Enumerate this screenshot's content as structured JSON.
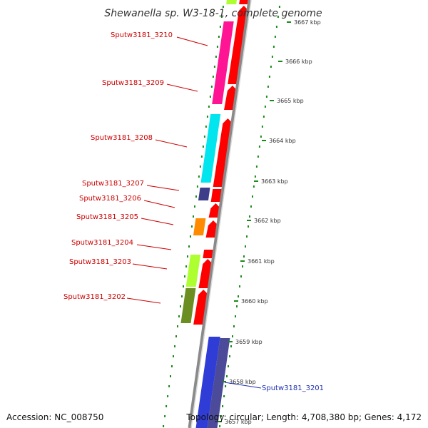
{
  "title": "Shewanella sp. W3-18-1, complete genome",
  "colors": {
    "backbone": "#8a8a8a",
    "ticks": "#1a8a1a",
    "forward_gene": "#ff0000",
    "reverse_gene": "#2f3cd6",
    "label_forward": "#cc0000",
    "label_reverse": "#1f2fb0"
  },
  "ruler": [
    {
      "label": "3667 kbp"
    },
    {
      "label": "3666 kbp"
    },
    {
      "label": "3665 kbp"
    },
    {
      "label": "3664 kbp"
    },
    {
      "label": "3663 kbp"
    },
    {
      "label": "3662 kbp"
    },
    {
      "label": "3661 kbp"
    },
    {
      "label": "3660 kbp"
    },
    {
      "label": "3659 kbp"
    },
    {
      "label": "3658 kbp"
    },
    {
      "label": "3657 kbp"
    }
  ],
  "genes": [
    {
      "label": "Sputw3181_3210",
      "strand": "forward",
      "cog_color": "#ff1493"
    },
    {
      "label": "Sputw3181_3209",
      "strand": "forward",
      "cog_color": "#ff1493"
    },
    {
      "label": "Sputw3181_3208",
      "strand": "forward",
      "cog_color": "#00e5ee"
    },
    {
      "label": "Sputw3181_3207",
      "strand": "forward",
      "cog_color": "#3d3d8a"
    },
    {
      "label": "Sputw3181_3206",
      "strand": "forward",
      "cog_color": ""
    },
    {
      "label": "Sputw3181_3205",
      "strand": "forward",
      "cog_color": "#ff8c00"
    },
    {
      "label": "Sputw3181_3204",
      "strand": "forward",
      "cog_color": ""
    },
    {
      "label": "Sputw3181_3203",
      "strand": "forward",
      "cog_color": "#adff2f"
    },
    {
      "label": "Sputw3181_3202",
      "strand": "forward",
      "cog_color": "#6b8e23"
    },
    {
      "label": "Sputw3181_3201",
      "strand": "reverse",
      "cog_color": "#4b4b9a"
    }
  ],
  "footer": {
    "accession": "Accession: NC_008750",
    "summary": "Topology: circular; Length: 4,708,380 bp; Genes: 4,172"
  }
}
